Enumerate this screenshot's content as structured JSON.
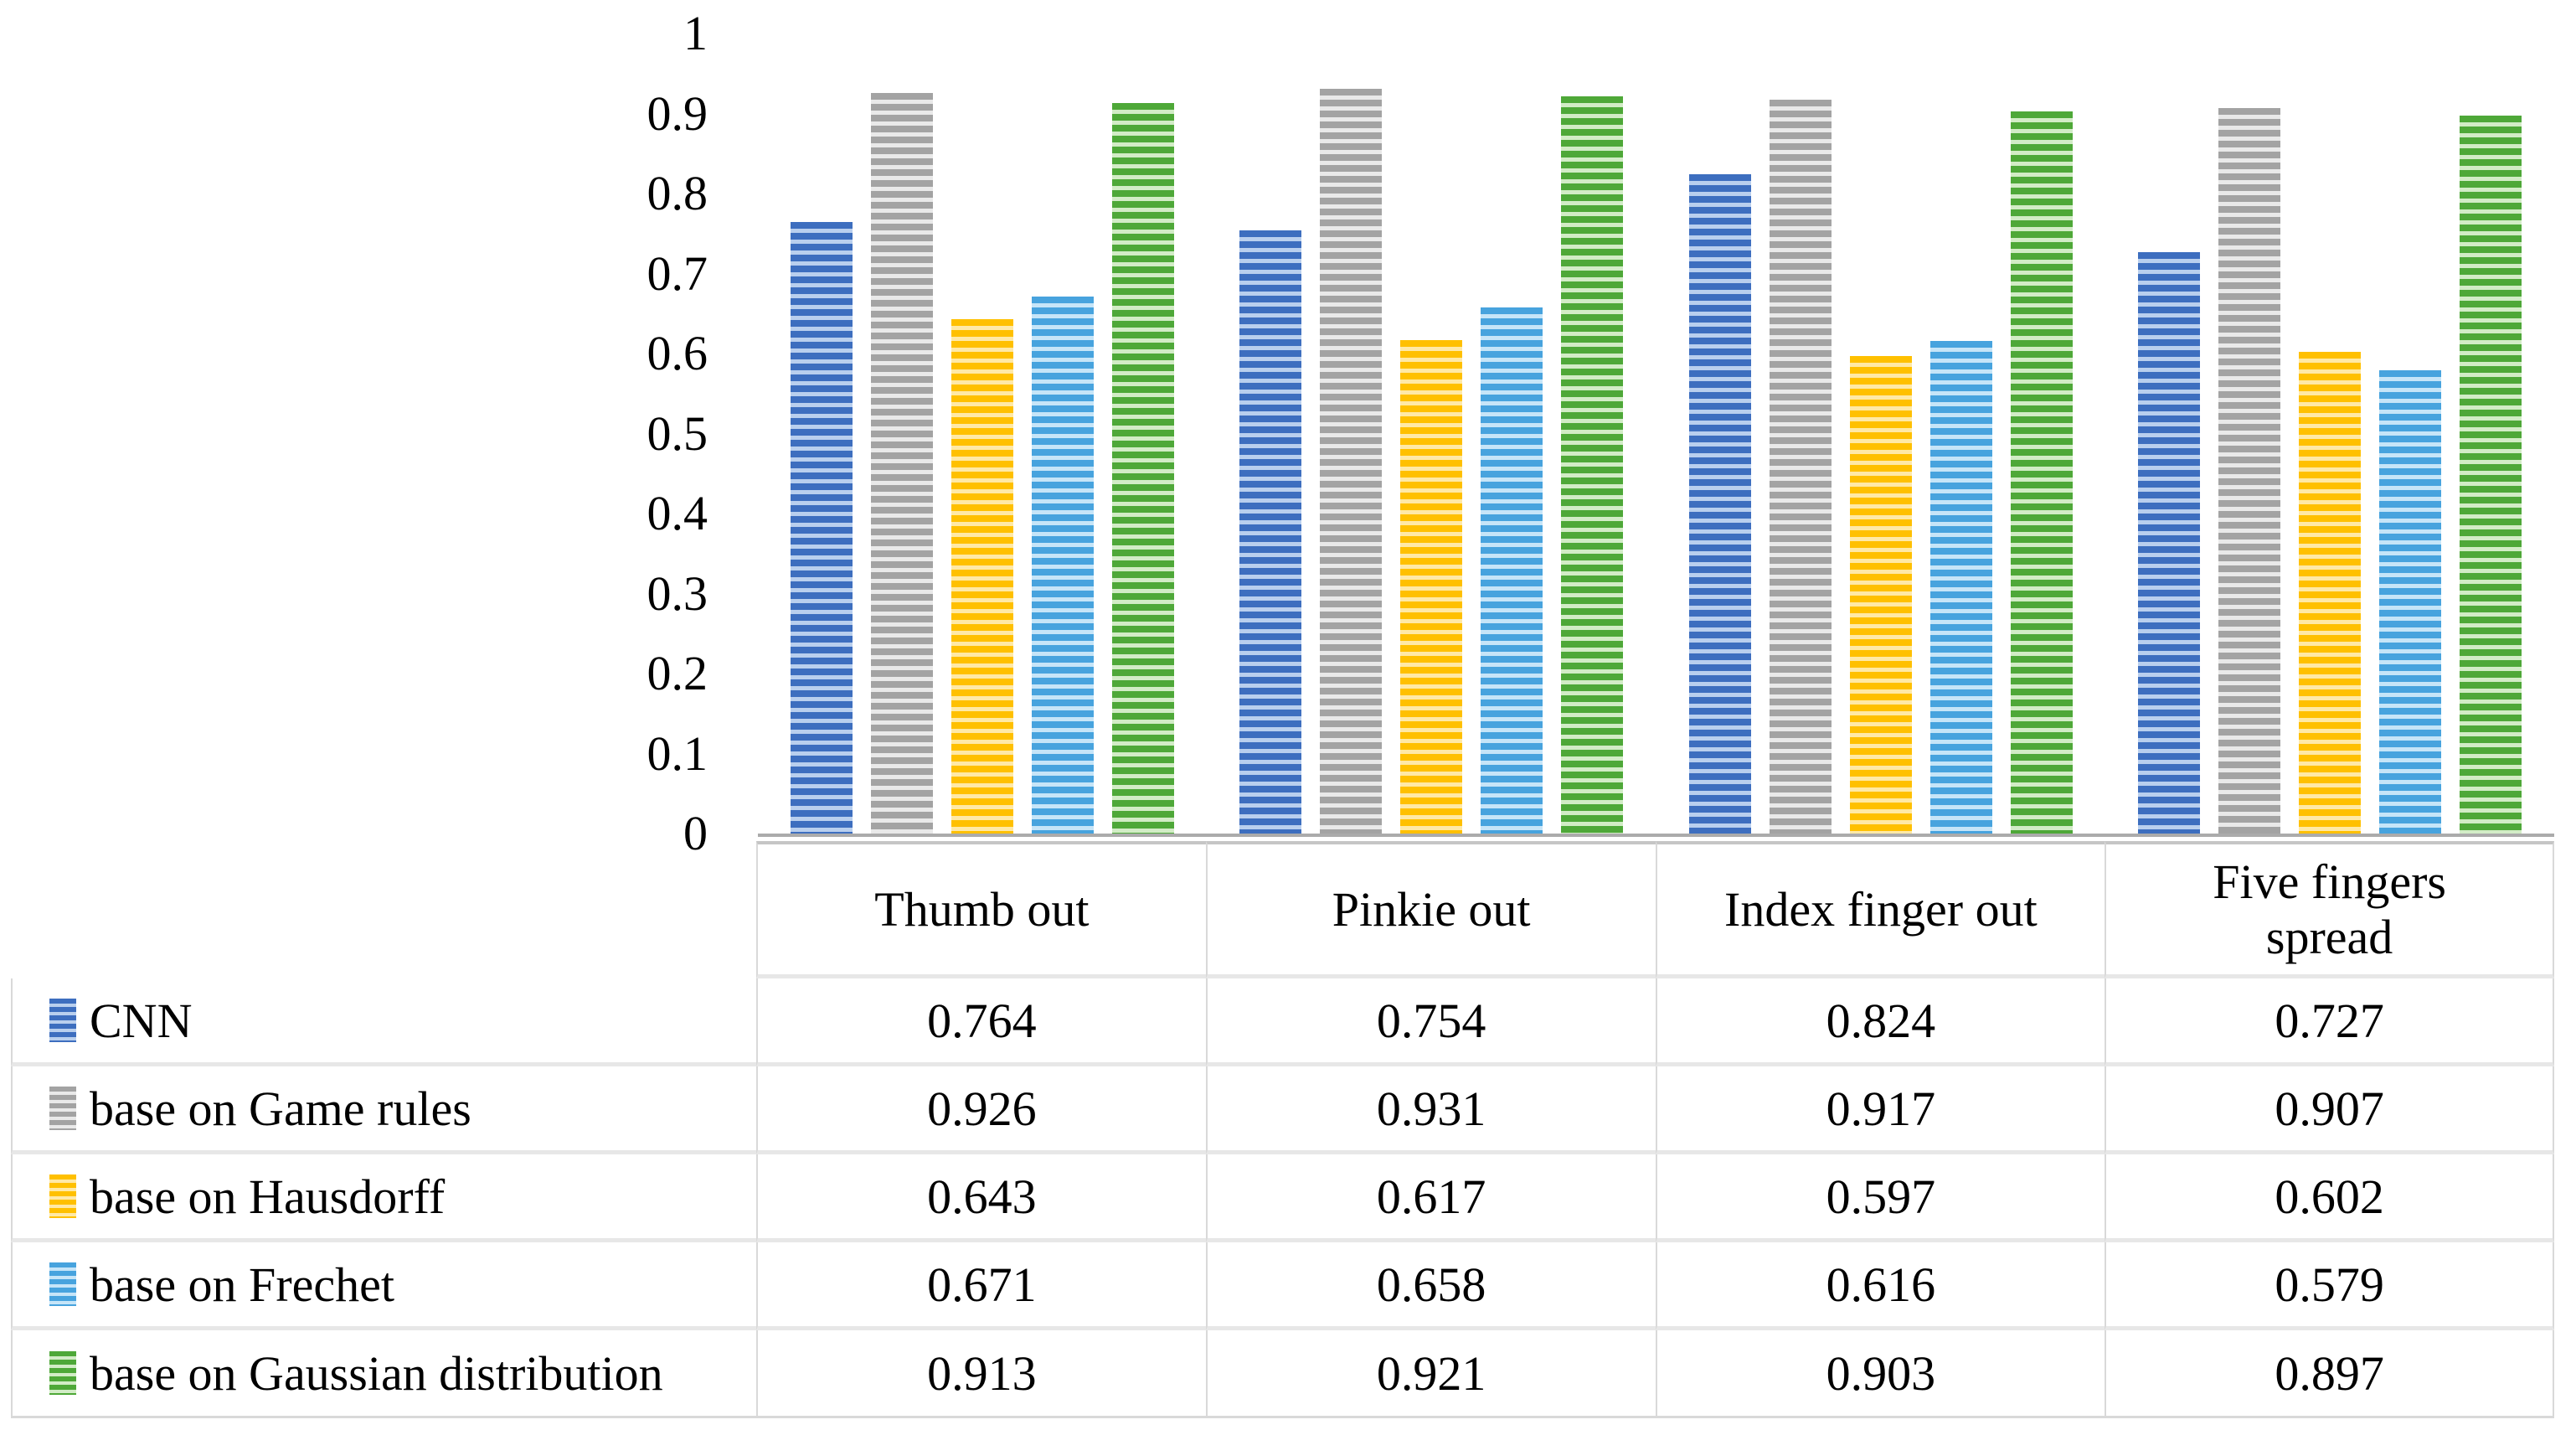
{
  "chart_data": {
    "type": "bar",
    "title": "",
    "xlabel": "",
    "ylabel": "",
    "ylim": [
      0,
      1
    ],
    "yticks": [
      "1",
      "0.9",
      "0.8",
      "0.7",
      "0.6",
      "0.5",
      "0.4",
      "0.3",
      "0.2",
      "0.1",
      "0"
    ],
    "grid": false,
    "bar_pattern": "horizontal-stripes",
    "legend_position": "table-left",
    "categories": [
      "Thumb out",
      "Pinkie out",
      "Index finger out",
      "Five fingers\nspread"
    ],
    "series": [
      {
        "name": "CNN",
        "color": "#3D6EBF",
        "light_color": "#B9CFEE",
        "values": [
          0.764,
          0.754,
          0.824,
          0.727
        ]
      },
      {
        "name": "base on Game rules",
        "color": "#A3A3A3",
        "light_color": "#E9E9E9",
        "values": [
          0.926,
          0.931,
          0.917,
          0.907
        ]
      },
      {
        "name": "base on Hausdorff",
        "color": "#FFC000",
        "light_color": "#FFE9A6",
        "values": [
          0.643,
          0.617,
          0.597,
          0.602
        ]
      },
      {
        "name": "base on Frechet",
        "color": "#47A3DE",
        "light_color": "#C6E5F8",
        "values": [
          0.671,
          0.658,
          0.616,
          0.579
        ]
      },
      {
        "name": "base on Gaussian distribution",
        "color": "#4EA838",
        "light_color": "#D2ECC6",
        "values": [
          0.913,
          0.921,
          0.903,
          0.897
        ]
      }
    ]
  }
}
